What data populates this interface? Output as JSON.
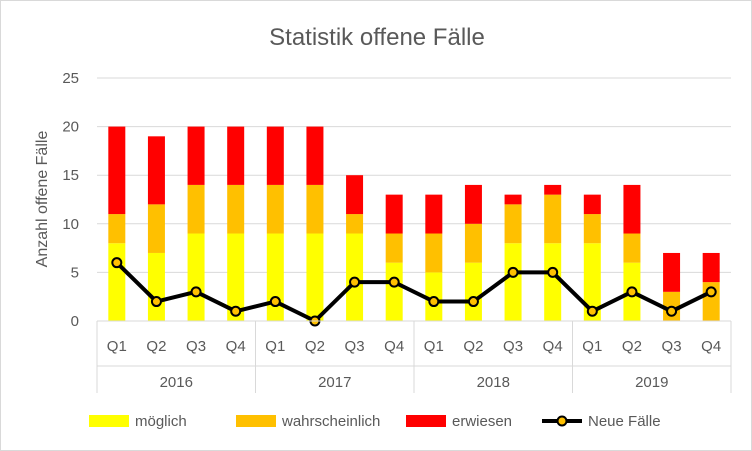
{
  "chart_data": {
    "type": "bar",
    "subtype": "stacked-bar-with-line",
    "title": "Statistik offene Fälle",
    "xlabel": "",
    "ylabel": "Anzahl offene Fälle",
    "ylim": [
      0,
      25
    ],
    "yticks": [
      0,
      5,
      10,
      15,
      20,
      25
    ],
    "grid": "horizontal",
    "legend_position": "bottom",
    "groups": [
      {
        "label": "2016",
        "quarters": [
          "Q1",
          "Q2",
          "Q3",
          "Q4"
        ]
      },
      {
        "label": "2017",
        "quarters": [
          "Q1",
          "Q2",
          "Q3",
          "Q4"
        ]
      },
      {
        "label": "2018",
        "quarters": [
          "Q1",
          "Q2",
          "Q3",
          "Q4"
        ]
      },
      {
        "label": "2019",
        "quarters": [
          "Q1",
          "Q2",
          "Q3",
          "Q4"
        ]
      }
    ],
    "series": [
      {
        "name": "möglich",
        "kind": "bar",
        "color": "#ffff00",
        "values": [
          8,
          7,
          9,
          9,
          9,
          9,
          9,
          6,
          5,
          6,
          8,
          8,
          8,
          6,
          0,
          0
        ]
      },
      {
        "name": "wahrscheinlich",
        "kind": "bar",
        "color": "#ffc000",
        "values": [
          3,
          5,
          5,
          5,
          5,
          5,
          2,
          3,
          4,
          4,
          4,
          5,
          3,
          3,
          3,
          4
        ]
      },
      {
        "name": "erwiesen",
        "kind": "bar",
        "color": "#ff0000",
        "values": [
          9,
          7,
          6,
          6,
          6,
          6,
          4,
          4,
          4,
          4,
          1,
          1,
          2,
          5,
          4,
          3
        ]
      },
      {
        "name": "Neue Fälle",
        "kind": "line",
        "color": "#000000",
        "marker_color": "#ffc000",
        "values": [
          6,
          2,
          3,
          1,
          2,
          0,
          4,
          4,
          2,
          2,
          5,
          5,
          1,
          3,
          1,
          3
        ]
      }
    ]
  }
}
